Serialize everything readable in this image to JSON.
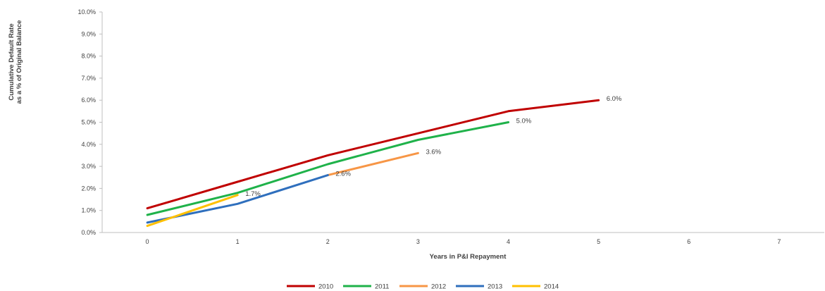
{
  "chart_data": {
    "type": "line",
    "xlabel": "Years in P&I Repayment",
    "ylabel_lines": [
      "Cumulative Default Rate",
      "as a % of Original Balance"
    ],
    "xlim": [
      0,
      7
    ],
    "ylim": [
      0,
      10
    ],
    "x_ticks": [
      "0",
      "1",
      "2",
      "3",
      "4",
      "5",
      "6",
      "7"
    ],
    "y_ticks": [
      "0.0%",
      "1.0%",
      "2.0%",
      "3.0%",
      "4.0%",
      "5.0%",
      "6.0%",
      "7.0%",
      "8.0%",
      "9.0%",
      "10.0%"
    ],
    "grid": false,
    "legend_position": "bottom",
    "series": [
      {
        "name": "2010",
        "color": "#c00000",
        "x": [
          0,
          1,
          2,
          3,
          4,
          5
        ],
        "y": [
          1.1,
          2.3,
          3.5,
          4.5,
          5.5,
          6.0
        ],
        "end_label": "6.0%"
      },
      {
        "name": "2011",
        "color": "#1fb24a",
        "x": [
          0,
          1,
          2,
          3,
          4
        ],
        "y": [
          0.8,
          1.8,
          3.1,
          4.2,
          5.0
        ],
        "end_label": "5.0%"
      },
      {
        "name": "2012",
        "color": "#f79646",
        "x": [
          2,
          3
        ],
        "y": [
          2.6,
          3.6
        ],
        "end_label": "3.6%"
      },
      {
        "name": "2013",
        "color": "#2f6fbd",
        "x": [
          0,
          1,
          2
        ],
        "y": [
          0.45,
          1.3,
          2.6
        ],
        "end_label": "2.6%"
      },
      {
        "name": "2014",
        "color": "#ffc000",
        "x": [
          0,
          1
        ],
        "y": [
          0.3,
          1.7
        ],
        "end_label": "1.7%"
      }
    ]
  }
}
